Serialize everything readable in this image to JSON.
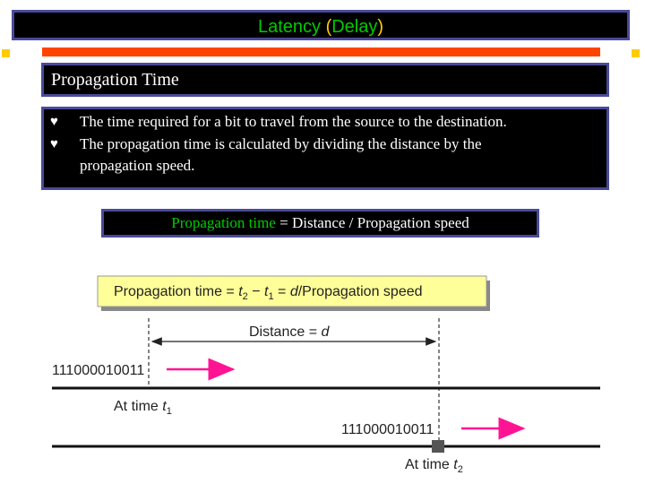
{
  "title": {
    "main": "Latency ",
    "open_paren": "(",
    "word": "Delay",
    "close_paren": ")"
  },
  "subtitle": "Propagation Time",
  "bullets": [
    {
      "icon": "bullet-script-icon",
      "line1": "The time required for a bit to travel from the source to the destination."
    },
    {
      "icon": "bullet-script-icon",
      "line1": "The propagation time is calculated by dividing the distance by the",
      "line2": "propagation speed."
    }
  ],
  "formula": {
    "left": "Propagation time",
    "eq": " = ",
    "right": "Distance / Propagation speed"
  },
  "colors": {
    "title_green": "#00cc00",
    "title_paren": "#ffcc00",
    "accent": "#ff4400",
    "box_border": "#4a4a9a",
    "arrow": "#ff1493",
    "fig_box": "#ffff99"
  },
  "figure": {
    "formula_label": {
      "a": "Propagation time = ",
      "t": "t",
      "s2": "2",
      "minus": " − ",
      "t1": "t",
      "s1": "1",
      "eq": " = ",
      "d": "d",
      "rest": "/Propagation speed"
    },
    "distance_label": {
      "text": "Distance = ",
      "d": "d"
    },
    "bits_1": "111000010011",
    "bits_2": "111000010011",
    "time1": {
      "text": "At time ",
      "t": "t",
      "sub": "1"
    },
    "time2": {
      "text": "At time ",
      "t": "t",
      "sub": "2"
    }
  }
}
